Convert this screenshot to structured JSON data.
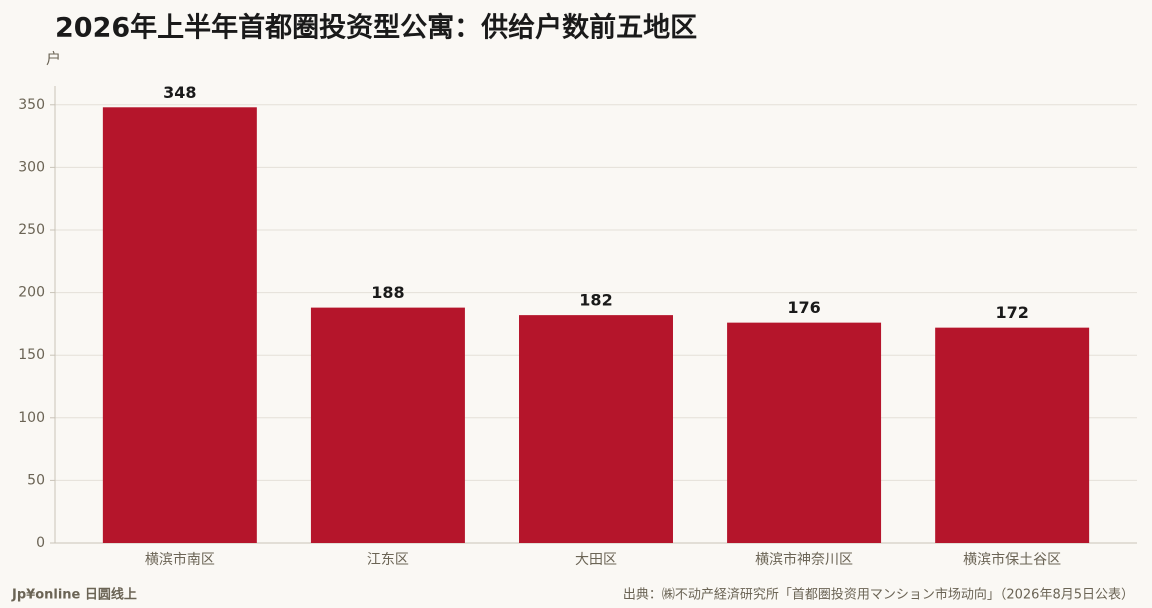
{
  "chart_data": {
    "type": "bar",
    "title": "2026年上半年首都圈投资型公寓：供给户数前五地区",
    "y_label": "户",
    "categories": [
      "横滨市南区",
      "江东区",
      "大田区",
      "横滨市神奈川区",
      "横滨市保土谷区"
    ],
    "values": [
      348,
      188,
      182,
      176,
      172
    ],
    "color": "#b5152b",
    "ylim": [
      0,
      365
    ],
    "yticks": [
      0,
      50,
      100,
      150,
      200,
      250,
      300,
      350
    ],
    "grid": true,
    "footer_left": "Jp¥online 日圆线上",
    "source": "出典：㈱不动产経済研究所「首都圏投资用マンション市场动向」（2026年8月5日公表）"
  }
}
